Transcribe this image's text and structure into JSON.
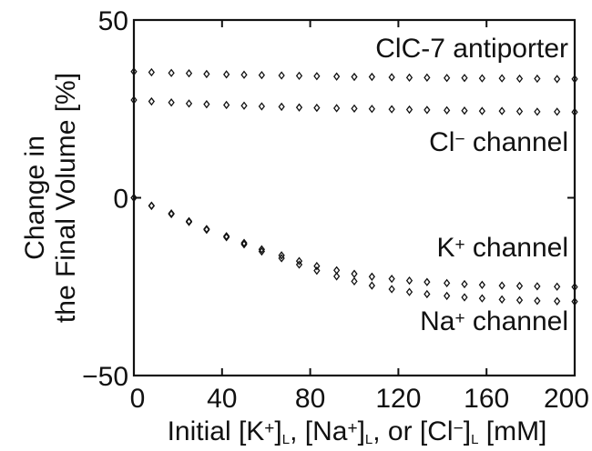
{
  "chart_data": {
    "type": "scatter",
    "title": "",
    "xlabel": {
      "parts": [
        {
          "text": "Initial [K",
          "style": "normal"
        },
        {
          "text": "+",
          "style": "sup"
        },
        {
          "text": "]",
          "style": "normal"
        },
        {
          "text": "L",
          "style": "sub"
        },
        {
          "text": ", [Na",
          "style": "normal"
        },
        {
          "text": "+",
          "style": "sup"
        },
        {
          "text": "]",
          "style": "normal"
        },
        {
          "text": "L",
          "style": "sub"
        },
        {
          "text": ", or [Cl",
          "style": "normal"
        },
        {
          "text": "−",
          "style": "sup"
        },
        {
          "text": "]",
          "style": "normal"
        },
        {
          "text": "L",
          "style": "sub"
        },
        {
          "text": " [mM]",
          "style": "normal"
        }
      ]
    },
    "ylabel_lines": [
      "Change in",
      "the Final Volume [%]"
    ],
    "xlim": [
      0,
      200
    ],
    "ylim": [
      -50,
      50
    ],
    "x_ticks": [
      "0",
      "40",
      "80",
      "120",
      "160",
      "200"
    ],
    "x_tick_values": [
      0,
      40,
      80,
      120,
      160,
      200
    ],
    "y_ticks": [
      "50",
      "0",
      "−50"
    ],
    "y_tick_values": [
      50,
      0,
      -50
    ],
    "grid": false,
    "marker": "diamond-open",
    "series": [
      {
        "name_parts": [
          {
            "text": "ClC-7 antiporter",
            "style": "normal"
          }
        ],
        "x": [
          0,
          8,
          17,
          25,
          33,
          42,
          50,
          58,
          67,
          75,
          83,
          92,
          100,
          108,
          117,
          125,
          133,
          142,
          150,
          158,
          167,
          175,
          183,
          192,
          200
        ],
        "y": [
          35.5,
          35.3,
          35.1,
          35.0,
          34.8,
          34.7,
          34.6,
          34.5,
          34.4,
          34.3,
          34.2,
          34.1,
          34.0,
          34.0,
          33.9,
          33.8,
          33.8,
          33.7,
          33.7,
          33.6,
          33.6,
          33.5,
          33.5,
          33.4,
          33.4
        ]
      },
      {
        "name_parts": [
          {
            "text": "Cl",
            "style": "normal"
          },
          {
            "text": "−",
            "style": "sup"
          },
          {
            "text": " channel",
            "style": "normal"
          }
        ],
        "x": [
          0,
          8,
          17,
          25,
          33,
          42,
          50,
          58,
          67,
          75,
          83,
          92,
          100,
          108,
          117,
          125,
          133,
          142,
          150,
          158,
          167,
          175,
          183,
          192,
          200
        ],
        "y": [
          27.5,
          27.1,
          26.8,
          26.5,
          26.3,
          26.1,
          25.9,
          25.7,
          25.6,
          25.4,
          25.3,
          25.2,
          25.1,
          25.0,
          24.9,
          24.8,
          24.7,
          24.6,
          24.5,
          24.4,
          24.4,
          24.3,
          24.2,
          24.2,
          24.1
        ]
      },
      {
        "name_parts": [
          {
            "text": "K",
            "style": "normal"
          },
          {
            "text": "+",
            "style": "sup"
          },
          {
            "text": " channel",
            "style": "normal"
          }
        ],
        "x": [
          0,
          8,
          17,
          25,
          33,
          42,
          50,
          58,
          67,
          75,
          83,
          92,
          100,
          108,
          117,
          125,
          133,
          142,
          150,
          158,
          167,
          175,
          183,
          192,
          200
        ],
        "y": [
          0,
          -2.2,
          -4.4,
          -6.6,
          -8.8,
          -10.8,
          -12.7,
          -14.5,
          -16.2,
          -17.8,
          -19.2,
          -20.4,
          -21.4,
          -22.2,
          -22.8,
          -23.3,
          -23.7,
          -24.0,
          -24.3,
          -24.5,
          -24.7,
          -24.8,
          -24.9,
          -25.0,
          -25.1
        ]
      },
      {
        "name_parts": [
          {
            "text": "Na",
            "style": "normal"
          },
          {
            "text": "+",
            "style": "sup"
          },
          {
            "text": " channel",
            "style": "normal"
          }
        ],
        "x": [
          0,
          8,
          17,
          25,
          33,
          42,
          50,
          58,
          67,
          75,
          83,
          92,
          100,
          108,
          117,
          125,
          133,
          142,
          150,
          158,
          167,
          175,
          183,
          192,
          200
        ],
        "y": [
          0,
          -2.3,
          -4.6,
          -6.8,
          -9.0,
          -11.1,
          -13.1,
          -15.1,
          -17.0,
          -18.8,
          -20.5,
          -22.1,
          -23.5,
          -24.7,
          -25.7,
          -26.5,
          -27.1,
          -27.6,
          -28.0,
          -28.3,
          -28.6,
          -28.8,
          -29.0,
          -29.1,
          -29.2
        ]
      }
    ]
  }
}
